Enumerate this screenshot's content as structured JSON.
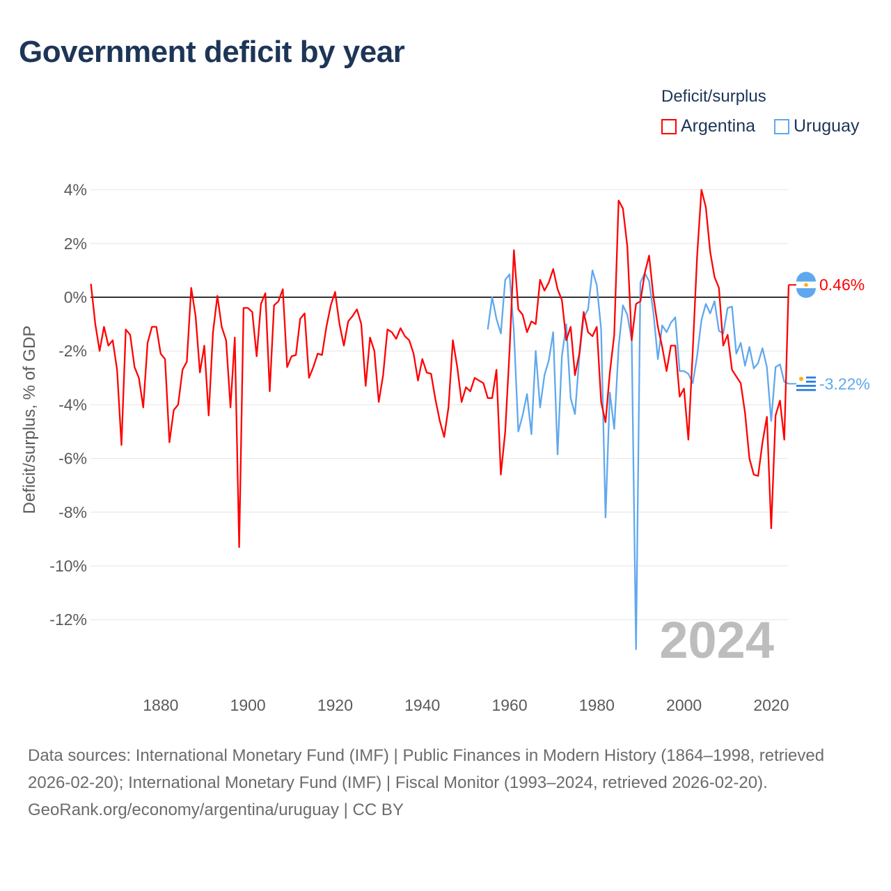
{
  "chart_data": {
    "type": "line",
    "title": "Government deficit by year",
    "ylabel": "Deficit/surplus, % of GDP",
    "xlabel": "",
    "legend_title": "Deficit/surplus",
    "legend_placement": "top-right",
    "ylim": [
      -13.5,
      4.2
    ],
    "xlim": [
      1864,
      2024
    ],
    "y_ticks": [
      4,
      2,
      0,
      -2,
      -4,
      -6,
      -8,
      -10,
      -12
    ],
    "y_tick_labels": [
      "4%",
      "2%",
      "0%",
      "-2%",
      "-4%",
      "-6%",
      "-8%",
      "-10%",
      "-12%"
    ],
    "x_ticks": [
      1880,
      1900,
      1920,
      1940,
      1960,
      1980,
      2000,
      2020
    ],
    "x_tick_labels": [
      "1880",
      "1900",
      "1920",
      "1940",
      "1960",
      "1980",
      "2000",
      "2020"
    ],
    "grid": true,
    "year_watermark": "2024",
    "series": [
      {
        "name": "Argentina",
        "color": "#ff0000",
        "start_year": 1864,
        "end_label": "0.46%",
        "values": [
          0.5,
          -1.0,
          -2.0,
          -1.1,
          -1.8,
          -1.6,
          -2.7,
          -5.5,
          -1.2,
          -1.4,
          -2.6,
          -3.0,
          -4.1,
          -1.7,
          -1.1,
          -1.1,
          -2.1,
          -2.3,
          -5.4,
          -4.2,
          -4.0,
          -2.7,
          -2.4,
          0.35,
          -0.7,
          -2.8,
          -1.8,
          -4.4,
          -1.3,
          0.05,
          -1.1,
          -1.6,
          -4.1,
          -1.5,
          -9.3,
          -0.4,
          -0.4,
          -0.55,
          -2.2,
          -0.25,
          0.15,
          -3.5,
          -0.3,
          -0.15,
          0.3,
          -2.6,
          -2.2,
          -2.15,
          -0.8,
          -0.6,
          -3.0,
          -2.6,
          -2.1,
          -2.15,
          -1.1,
          -0.3,
          0.2,
          -1.0,
          -1.8,
          -0.9,
          -0.7,
          -0.45,
          -1.0,
          -3.3,
          -1.5,
          -2.0,
          -3.9,
          -2.9,
          -1.2,
          -1.3,
          -1.55,
          -1.15,
          -1.45,
          -1.6,
          -2.1,
          -3.1,
          -2.3,
          -2.8,
          -2.85,
          -3.8,
          -4.6,
          -5.2,
          -4.1,
          -1.6,
          -2.6,
          -3.9,
          -3.35,
          -3.5,
          -3.0,
          -3.1,
          -3.2,
          -3.75,
          -3.75,
          -2.7,
          -6.6,
          -5.0,
          -2.0,
          1.75,
          -0.45,
          -0.65,
          -1.3,
          -0.9,
          -1.0,
          0.65,
          0.25,
          0.55,
          1.05,
          0.3,
          -0.1,
          -1.6,
          -1.1,
          -2.9,
          -2.1,
          -0.55,
          -1.3,
          -1.45,
          -1.1,
          -3.9,
          -4.65,
          -2.8,
          -1.4,
          3.6,
          3.3,
          1.9,
          -1.6,
          -0.25,
          -0.15,
          0.9,
          1.55,
          0.0,
          -1.1,
          -1.85,
          -2.75,
          -1.8,
          -1.8,
          -3.7,
          -3.4,
          -5.3,
          -2.0,
          1.5,
          4.0,
          3.35,
          1.7,
          0.75,
          0.35,
          -1.8,
          -1.4,
          -2.7,
          -2.95,
          -3.2,
          -4.3,
          -6.0,
          -6.6,
          -6.65,
          -5.4,
          -4.45,
          -8.6,
          -4.4,
          -3.85,
          -5.3,
          0.46
        ]
      },
      {
        "name": "Uruguay",
        "color": "#5fa8ee",
        "start_year": 1955,
        "end_label": "-3.22%",
        "values": [
          -1.2,
          0.0,
          -0.8,
          -1.35,
          0.65,
          0.85,
          -1.3,
          -5.0,
          -4.4,
          -3.6,
          -5.1,
          -2.0,
          -4.1,
          -2.9,
          -2.35,
          -1.3,
          -5.85,
          -2.2,
          -1.0,
          -3.75,
          -4.35,
          -2.2,
          -0.75,
          -0.45,
          1.0,
          0.45,
          -1.2,
          -8.2,
          -3.55,
          -4.9,
          -1.85,
          -0.3,
          -0.65,
          -1.6,
          -13.1,
          0.55,
          0.9,
          0.6,
          -0.6,
          -2.3,
          -1.05,
          -1.3,
          -0.95,
          -0.75,
          -2.75,
          -2.75,
          -2.85,
          -3.2,
          -2.2,
          -0.85,
          -0.25,
          -0.6,
          -0.15,
          -1.25,
          -1.35,
          -0.4,
          -0.35,
          -2.1,
          -1.7,
          -2.55,
          -1.85,
          -2.65,
          -2.45,
          -1.9,
          -2.6,
          -4.6,
          -2.6,
          -2.5,
          -3.15,
          -3.22
        ]
      }
    ]
  },
  "footer": {
    "sources": "Data sources: International Monetary Fund (IMF) | Public Finances in Modern History (1864–1998, retrieved 2026-02-20); International Monetary Fund (IMF) | Fiscal Monitor (1993–2024, retrieved 2026-02-20).",
    "credit": "GeoRank.org/economy/argentina/uruguay | CC BY"
  }
}
